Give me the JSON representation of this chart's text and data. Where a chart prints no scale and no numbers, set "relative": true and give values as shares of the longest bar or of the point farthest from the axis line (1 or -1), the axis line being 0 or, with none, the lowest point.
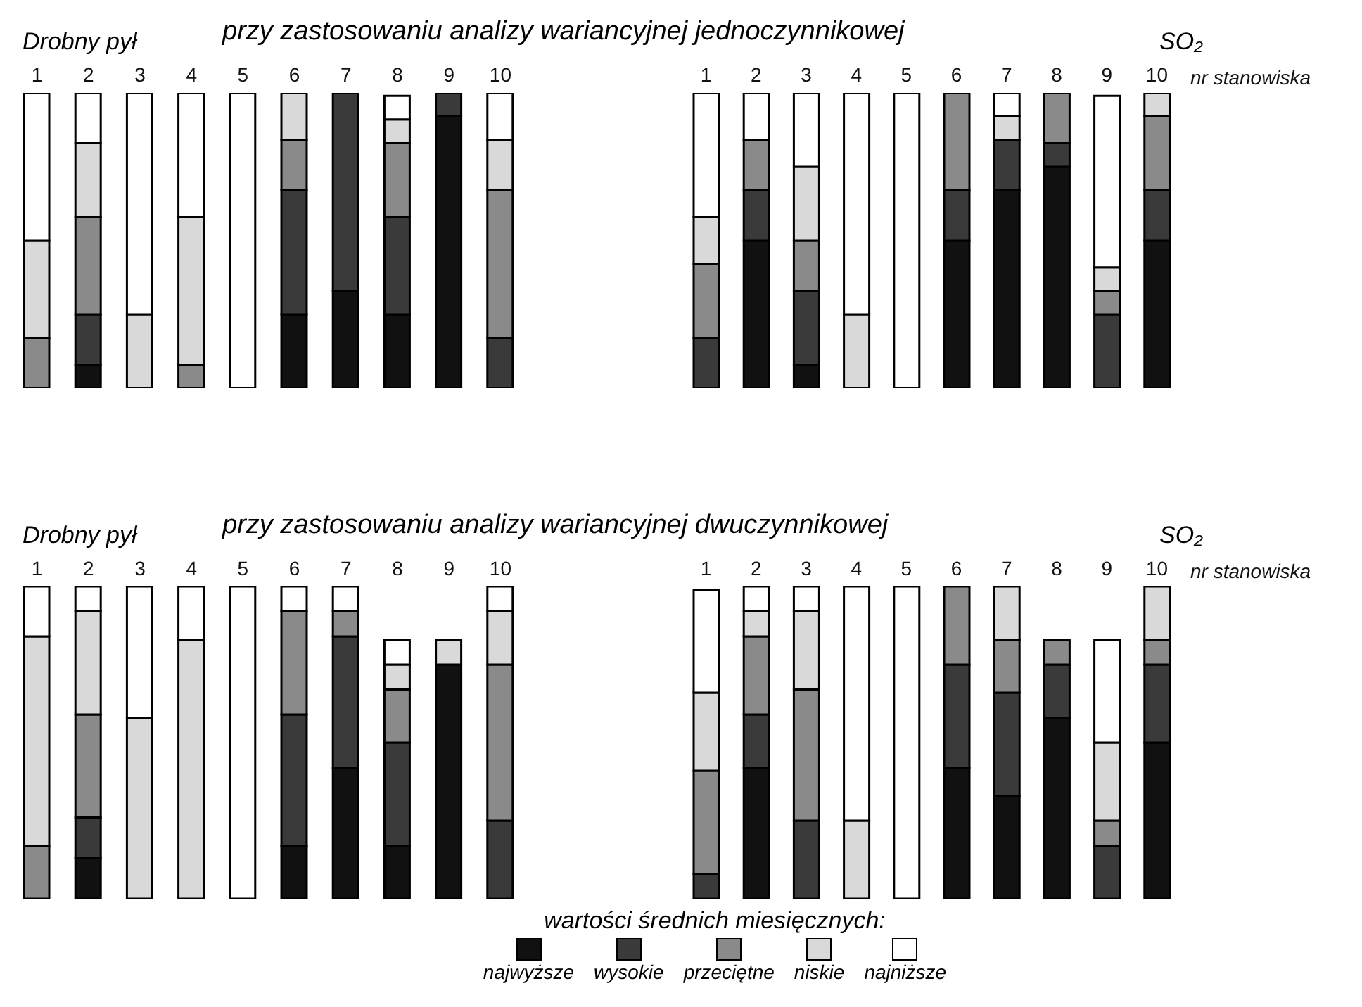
{
  "chart_data": [
    {
      "type": "bar",
      "title": "Drobny pył",
      "subtitle": "przy zastosowaniu analizy wariancyjnej jednoczynnikowej",
      "relative": true,
      "stacked": true,
      "legend": false,
      "categories": [
        "1",
        "2",
        "3",
        "4",
        "5",
        "6",
        "7",
        "8",
        "9",
        "10"
      ],
      "series": [
        {
          "color": "#111111",
          "values": [
            0,
            0.08,
            0,
            0,
            0,
            0.25,
            0.33,
            0.25,
            0.92,
            0
          ]
        },
        {
          "color": "#3a3a3a",
          "values": [
            0,
            0.17,
            0,
            0,
            0,
            0.42,
            0.67,
            0.33,
            0.08,
            0.17
          ]
        },
        {
          "color": "#8a8a8a",
          "values": [
            0.17,
            0.33,
            0,
            0.08,
            0,
            0.17,
            0,
            0.25,
            0,
            0.5
          ]
        },
        {
          "color": "#d9d9d9",
          "values": [
            0.33,
            0.25,
            0.25,
            0.5,
            0,
            0.16,
            0,
            0.08,
            0,
            0.17
          ]
        },
        {
          "color": "#ffffff",
          "values": [
            0.5,
            0.17,
            0.75,
            0.42,
            1,
            0,
            0,
            0.08,
            0,
            0.16
          ]
        }
      ]
    },
    {
      "type": "bar",
      "title": "SO₂",
      "xlabel": "nr stanowiska",
      "relative": true,
      "stacked": true,
      "legend": false,
      "categories": [
        "1",
        "2",
        "3",
        "4",
        "5",
        "6",
        "7",
        "8",
        "9",
        "10"
      ],
      "series": [
        {
          "color": "#111111",
          "values": [
            0,
            0.5,
            0.08,
            0,
            0,
            0.5,
            0.67,
            0.75,
            0,
            0.5
          ]
        },
        {
          "color": "#3a3a3a",
          "values": [
            0.17,
            0.17,
            0.25,
            0,
            0,
            0.17,
            0.17,
            0.08,
            0.25,
            0.17
          ]
        },
        {
          "color": "#8a8a8a",
          "values": [
            0.25,
            0.17,
            0.17,
            0,
            0,
            0.33,
            0,
            0.17,
            0.08,
            0.25
          ]
        },
        {
          "color": "#d9d9d9",
          "values": [
            0.16,
            0,
            0.25,
            0.25,
            0,
            0,
            0.08,
            0,
            0.08,
            0.08
          ]
        },
        {
          "color": "#ffffff",
          "values": [
            0.42,
            0.16,
            0.25,
            0.75,
            1,
            0,
            0.08,
            0,
            0.58,
            0
          ]
        }
      ]
    },
    {
      "type": "bar",
      "title": "Drobny pył",
      "subtitle": "przy zastosowaniu analizy wariancyjnej dwuczynnikowej",
      "relative": true,
      "stacked": true,
      "legend": false,
      "categories": [
        "1",
        "2",
        "3",
        "4",
        "5",
        "6",
        "7",
        "8",
        "9",
        "10"
      ],
      "series": [
        {
          "color": "#111111",
          "values": [
            0,
            0.13,
            0,
            0,
            0,
            0.17,
            0.42,
            0.17,
            0.75,
            0
          ]
        },
        {
          "color": "#3a3a3a",
          "values": [
            0,
            0.13,
            0,
            0,
            0,
            0.42,
            0.42,
            0.33,
            0,
            0.25
          ]
        },
        {
          "color": "#8a8a8a",
          "values": [
            0.17,
            0.33,
            0,
            0,
            0,
            0.33,
            0.08,
            0.17,
            0,
            0.5
          ]
        },
        {
          "color": "#d9d9d9",
          "values": [
            0.67,
            0.33,
            0.58,
            0.83,
            0,
            0,
            0,
            0.08,
            0.08,
            0.17
          ]
        },
        {
          "color": "#ffffff",
          "values": [
            0.16,
            0.08,
            0.42,
            0.17,
            1,
            0.08,
            0.08,
            0.08,
            0,
            0.08
          ]
        }
      ]
    },
    {
      "type": "bar",
      "title": "SO₂",
      "xlabel": "nr stanowiska",
      "relative": true,
      "stacked": true,
      "legend": "bottom",
      "legend_title": "wartości średnich miesięcznych:",
      "categories": [
        "1",
        "2",
        "3",
        "4",
        "5",
        "6",
        "7",
        "8",
        "9",
        "10"
      ],
      "series": [
        {
          "name": "najwyższe",
          "color": "#111111",
          "values": [
            0,
            0.42,
            0,
            0,
            0,
            0.42,
            0.33,
            0.58,
            0,
            0.5
          ]
        },
        {
          "name": "wysokie",
          "color": "#3a3a3a",
          "values": [
            0.08,
            0.17,
            0.25,
            0,
            0,
            0.33,
            0.33,
            0.17,
            0.17,
            0.25
          ]
        },
        {
          "name": "przeciętne",
          "color": "#8a8a8a",
          "values": [
            0.33,
            0.25,
            0.42,
            0,
            0,
            0.25,
            0.17,
            0.08,
            0.08,
            0.08
          ]
        },
        {
          "name": "niskie",
          "color": "#d9d9d9",
          "values": [
            0.25,
            0.08,
            0.25,
            0.25,
            0,
            0,
            0.17,
            0,
            0.25,
            0.17
          ]
        },
        {
          "name": "najniższe",
          "color": "#ffffff",
          "values": [
            0.33,
            0.08,
            0.08,
            0.75,
            1,
            0,
            0,
            0,
            0.33,
            0
          ]
        }
      ]
    }
  ]
}
